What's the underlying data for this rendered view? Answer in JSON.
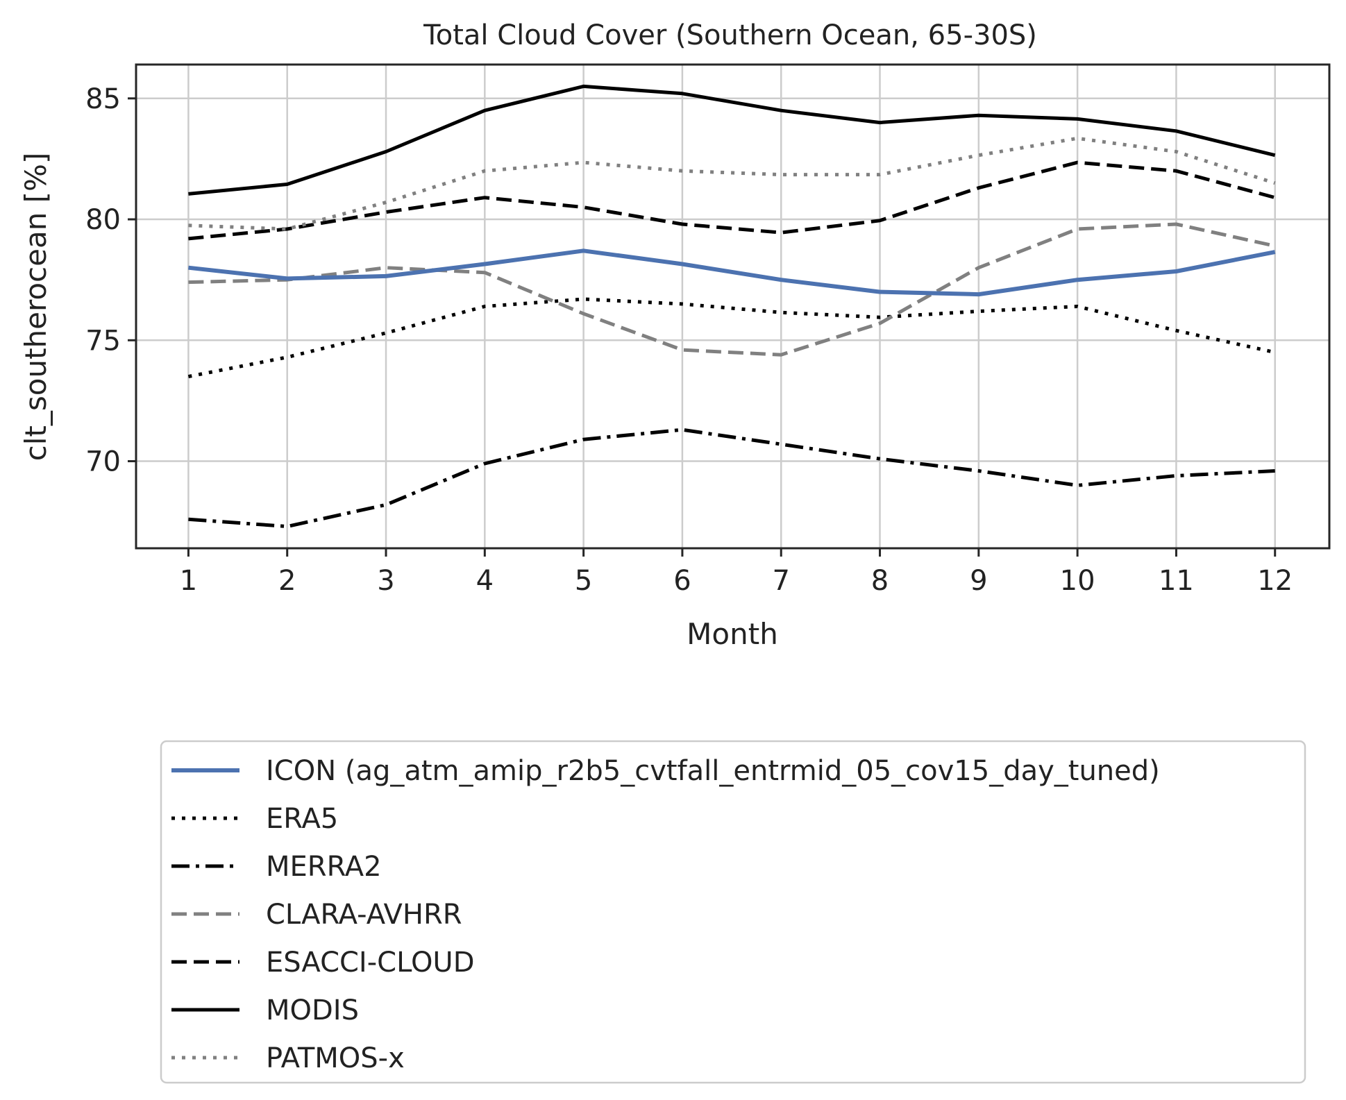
{
  "chart_data": {
    "type": "line",
    "title": "Total Cloud Cover (Southern Ocean, 65-30S)",
    "xlabel": "Month",
    "ylabel": "clt_southerocean [%]",
    "x": [
      1,
      2,
      3,
      4,
      5,
      6,
      7,
      8,
      9,
      10,
      11,
      12
    ],
    "xlim": [
      0.47,
      12.55
    ],
    "ylim": [
      66.4,
      86.4
    ],
    "yticks": [
      70,
      75,
      80,
      85
    ],
    "grid": true,
    "legend_position": "below-plot",
    "series": [
      {
        "name": "ICON (ag_atm_amip_r2b5_cvtfall_entrmid_05_cov15_day_tuned)",
        "color": "#4c72b0",
        "style": "solid",
        "width": 6,
        "values": [
          78.0,
          77.55,
          77.65,
          78.15,
          78.7,
          78.15,
          77.5,
          77.0,
          76.9,
          77.5,
          77.85,
          78.65
        ]
      },
      {
        "name": "ERA5",
        "color": "#000000",
        "style": "dotted",
        "width": 5,
        "values": [
          73.5,
          74.3,
          75.3,
          76.4,
          76.7,
          76.5,
          76.15,
          75.95,
          76.2,
          76.4,
          75.4,
          74.5
        ]
      },
      {
        "name": "MERRA2",
        "color": "#000000",
        "style": "dashdot",
        "width": 5,
        "values": [
          67.6,
          67.3,
          68.2,
          69.9,
          70.9,
          71.3,
          70.7,
          70.1,
          69.6,
          69.0,
          69.4,
          69.6
        ]
      },
      {
        "name": "CLARA-AVHRR",
        "color": "#808080",
        "style": "dashed",
        "width": 5,
        "values": [
          77.4,
          77.5,
          78.0,
          77.8,
          76.1,
          74.6,
          74.4,
          75.7,
          78.0,
          79.6,
          79.8,
          78.9
        ]
      },
      {
        "name": "ESACCI-CLOUD",
        "color": "#000000",
        "style": "dashed",
        "width": 5,
        "values": [
          79.2,
          79.6,
          80.3,
          80.9,
          80.5,
          79.8,
          79.45,
          79.95,
          81.3,
          82.35,
          82.0,
          80.9
        ]
      },
      {
        "name": "MODIS",
        "color": "#000000",
        "style": "solid",
        "width": 5,
        "values": [
          81.05,
          81.45,
          82.8,
          84.5,
          85.5,
          85.2,
          84.5,
          84.0,
          84.3,
          84.15,
          83.65,
          82.65
        ]
      },
      {
        "name": "PATMOS-x",
        "color": "#808080",
        "style": "dotted",
        "width": 5,
        "values": [
          79.75,
          79.6,
          80.7,
          82.0,
          82.35,
          82.0,
          81.85,
          81.85,
          82.65,
          83.35,
          82.8,
          81.5
        ]
      }
    ]
  }
}
